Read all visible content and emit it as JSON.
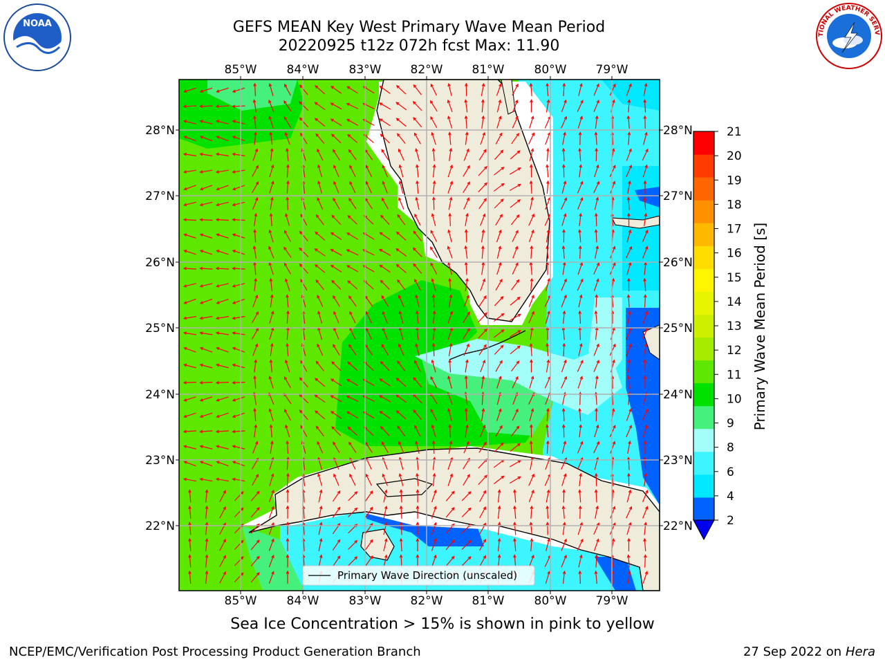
{
  "header": {
    "title_line1": "GEFS MEAN Key West Primary Wave Mean Period",
    "title_line2": "20220925 t12z 072h fcst   Max: 11.90"
  },
  "map": {
    "lon_labels": [
      "85°W",
      "84°W",
      "83°W",
      "82°W",
      "81°W",
      "80°W",
      "79°W"
    ],
    "lat_labels": [
      "28°N",
      "27°N",
      "26°N",
      "25°N",
      "24°N",
      "23°N",
      "22°N"
    ],
    "legend_label": "Primary Wave Direction (unscaled)",
    "arrow_color": "#ff0000",
    "land_color": "#efecdc"
  },
  "colorbar": {
    "title": "Primary Wave Mean Period [s]",
    "tick_labels": [
      "2",
      "4",
      "6",
      "8",
      "9",
      "10",
      "11",
      "12",
      "13",
      "14",
      "15",
      "16",
      "17",
      "18",
      "19",
      "20",
      "21"
    ],
    "colors": [
      "#0062ff",
      "#00e8ff",
      "#3cf5ff",
      "#a3fdf8",
      "#45f07c",
      "#00e100",
      "#5ee800",
      "#a6eb00",
      "#cdf000",
      "#e8f500",
      "#fff500",
      "#ffdc00",
      "#ffb800",
      "#ff9000",
      "#ff6600",
      "#ff3c00",
      "#ff0000"
    ],
    "extend_color": "#0000ee"
  },
  "footer": {
    "note": "Sea Ice Concentration > 15% is shown in pink to yellow",
    "credit": "NCEP/EMC/Verification Post Processing Product Generation Branch",
    "date": "27 Sep 2022 on",
    "host": "Hera"
  },
  "logos": {
    "left": "NOAA",
    "right": "NATIONAL WEATHER SERVICE"
  }
}
